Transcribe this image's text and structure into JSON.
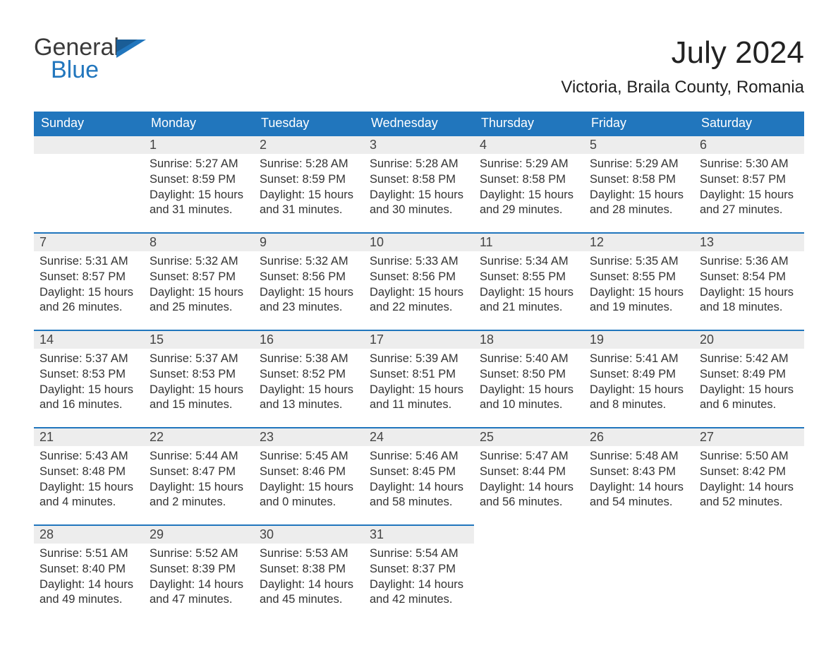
{
  "brand": {
    "line1": "General",
    "line2": "Blue",
    "flag_color": "#2176bd"
  },
  "title": "July 2024",
  "location": "Victoria, Braila County, Romania",
  "colors": {
    "header_bg": "#2176bd",
    "header_text": "#ffffff",
    "daybar_bg": "#ededed",
    "daybar_border": "#2176bd",
    "body_text": "#333333",
    "page_bg": "#ffffff"
  },
  "fonts": {
    "month_title_pt": 44,
    "location_pt": 24,
    "weekday_pt": 18,
    "daynum_pt": 18,
    "body_pt": 16.5,
    "family": "Arial"
  },
  "weekdays": [
    "Sunday",
    "Monday",
    "Tuesday",
    "Wednesday",
    "Thursday",
    "Friday",
    "Saturday"
  ],
  "start_offset": 1,
  "days": [
    {
      "n": "1",
      "sunrise": "Sunrise: 5:27 AM",
      "sunset": "Sunset: 8:59 PM",
      "day1": "Daylight: 15 hours",
      "day2": "and 31 minutes."
    },
    {
      "n": "2",
      "sunrise": "Sunrise: 5:28 AM",
      "sunset": "Sunset: 8:59 PM",
      "day1": "Daylight: 15 hours",
      "day2": "and 31 minutes."
    },
    {
      "n": "3",
      "sunrise": "Sunrise: 5:28 AM",
      "sunset": "Sunset: 8:58 PM",
      "day1": "Daylight: 15 hours",
      "day2": "and 30 minutes."
    },
    {
      "n": "4",
      "sunrise": "Sunrise: 5:29 AM",
      "sunset": "Sunset: 8:58 PM",
      "day1": "Daylight: 15 hours",
      "day2": "and 29 minutes."
    },
    {
      "n": "5",
      "sunrise": "Sunrise: 5:29 AM",
      "sunset": "Sunset: 8:58 PM",
      "day1": "Daylight: 15 hours",
      "day2": "and 28 minutes."
    },
    {
      "n": "6",
      "sunrise": "Sunrise: 5:30 AM",
      "sunset": "Sunset: 8:57 PM",
      "day1": "Daylight: 15 hours",
      "day2": "and 27 minutes."
    },
    {
      "n": "7",
      "sunrise": "Sunrise: 5:31 AM",
      "sunset": "Sunset: 8:57 PM",
      "day1": "Daylight: 15 hours",
      "day2": "and 26 minutes."
    },
    {
      "n": "8",
      "sunrise": "Sunrise: 5:32 AM",
      "sunset": "Sunset: 8:57 PM",
      "day1": "Daylight: 15 hours",
      "day2": "and 25 minutes."
    },
    {
      "n": "9",
      "sunrise": "Sunrise: 5:32 AM",
      "sunset": "Sunset: 8:56 PM",
      "day1": "Daylight: 15 hours",
      "day2": "and 23 minutes."
    },
    {
      "n": "10",
      "sunrise": "Sunrise: 5:33 AM",
      "sunset": "Sunset: 8:56 PM",
      "day1": "Daylight: 15 hours",
      "day2": "and 22 minutes."
    },
    {
      "n": "11",
      "sunrise": "Sunrise: 5:34 AM",
      "sunset": "Sunset: 8:55 PM",
      "day1": "Daylight: 15 hours",
      "day2": "and 21 minutes."
    },
    {
      "n": "12",
      "sunrise": "Sunrise: 5:35 AM",
      "sunset": "Sunset: 8:55 PM",
      "day1": "Daylight: 15 hours",
      "day2": "and 19 minutes."
    },
    {
      "n": "13",
      "sunrise": "Sunrise: 5:36 AM",
      "sunset": "Sunset: 8:54 PM",
      "day1": "Daylight: 15 hours",
      "day2": "and 18 minutes."
    },
    {
      "n": "14",
      "sunrise": "Sunrise: 5:37 AM",
      "sunset": "Sunset: 8:53 PM",
      "day1": "Daylight: 15 hours",
      "day2": "and 16 minutes."
    },
    {
      "n": "15",
      "sunrise": "Sunrise: 5:37 AM",
      "sunset": "Sunset: 8:53 PM",
      "day1": "Daylight: 15 hours",
      "day2": "and 15 minutes."
    },
    {
      "n": "16",
      "sunrise": "Sunrise: 5:38 AM",
      "sunset": "Sunset: 8:52 PM",
      "day1": "Daylight: 15 hours",
      "day2": "and 13 minutes."
    },
    {
      "n": "17",
      "sunrise": "Sunrise: 5:39 AM",
      "sunset": "Sunset: 8:51 PM",
      "day1": "Daylight: 15 hours",
      "day2": "and 11 minutes."
    },
    {
      "n": "18",
      "sunrise": "Sunrise: 5:40 AM",
      "sunset": "Sunset: 8:50 PM",
      "day1": "Daylight: 15 hours",
      "day2": "and 10 minutes."
    },
    {
      "n": "19",
      "sunrise": "Sunrise: 5:41 AM",
      "sunset": "Sunset: 8:49 PM",
      "day1": "Daylight: 15 hours",
      "day2": "and 8 minutes."
    },
    {
      "n": "20",
      "sunrise": "Sunrise: 5:42 AM",
      "sunset": "Sunset: 8:49 PM",
      "day1": "Daylight: 15 hours",
      "day2": "and 6 minutes."
    },
    {
      "n": "21",
      "sunrise": "Sunrise: 5:43 AM",
      "sunset": "Sunset: 8:48 PM",
      "day1": "Daylight: 15 hours",
      "day2": "and 4 minutes."
    },
    {
      "n": "22",
      "sunrise": "Sunrise: 5:44 AM",
      "sunset": "Sunset: 8:47 PM",
      "day1": "Daylight: 15 hours",
      "day2": "and 2 minutes."
    },
    {
      "n": "23",
      "sunrise": "Sunrise: 5:45 AM",
      "sunset": "Sunset: 8:46 PM",
      "day1": "Daylight: 15 hours",
      "day2": "and 0 minutes."
    },
    {
      "n": "24",
      "sunrise": "Sunrise: 5:46 AM",
      "sunset": "Sunset: 8:45 PM",
      "day1": "Daylight: 14 hours",
      "day2": "and 58 minutes."
    },
    {
      "n": "25",
      "sunrise": "Sunrise: 5:47 AM",
      "sunset": "Sunset: 8:44 PM",
      "day1": "Daylight: 14 hours",
      "day2": "and 56 minutes."
    },
    {
      "n": "26",
      "sunrise": "Sunrise: 5:48 AM",
      "sunset": "Sunset: 8:43 PM",
      "day1": "Daylight: 14 hours",
      "day2": "and 54 minutes."
    },
    {
      "n": "27",
      "sunrise": "Sunrise: 5:50 AM",
      "sunset": "Sunset: 8:42 PM",
      "day1": "Daylight: 14 hours",
      "day2": "and 52 minutes."
    },
    {
      "n": "28",
      "sunrise": "Sunrise: 5:51 AM",
      "sunset": "Sunset: 8:40 PM",
      "day1": "Daylight: 14 hours",
      "day2": "and 49 minutes."
    },
    {
      "n": "29",
      "sunrise": "Sunrise: 5:52 AM",
      "sunset": "Sunset: 8:39 PM",
      "day1": "Daylight: 14 hours",
      "day2": "and 47 minutes."
    },
    {
      "n": "30",
      "sunrise": "Sunrise: 5:53 AM",
      "sunset": "Sunset: 8:38 PM",
      "day1": "Daylight: 14 hours",
      "day2": "and 45 minutes."
    },
    {
      "n": "31",
      "sunrise": "Sunrise: 5:54 AM",
      "sunset": "Sunset: 8:37 PM",
      "day1": "Daylight: 14 hours",
      "day2": "and 42 minutes."
    }
  ]
}
